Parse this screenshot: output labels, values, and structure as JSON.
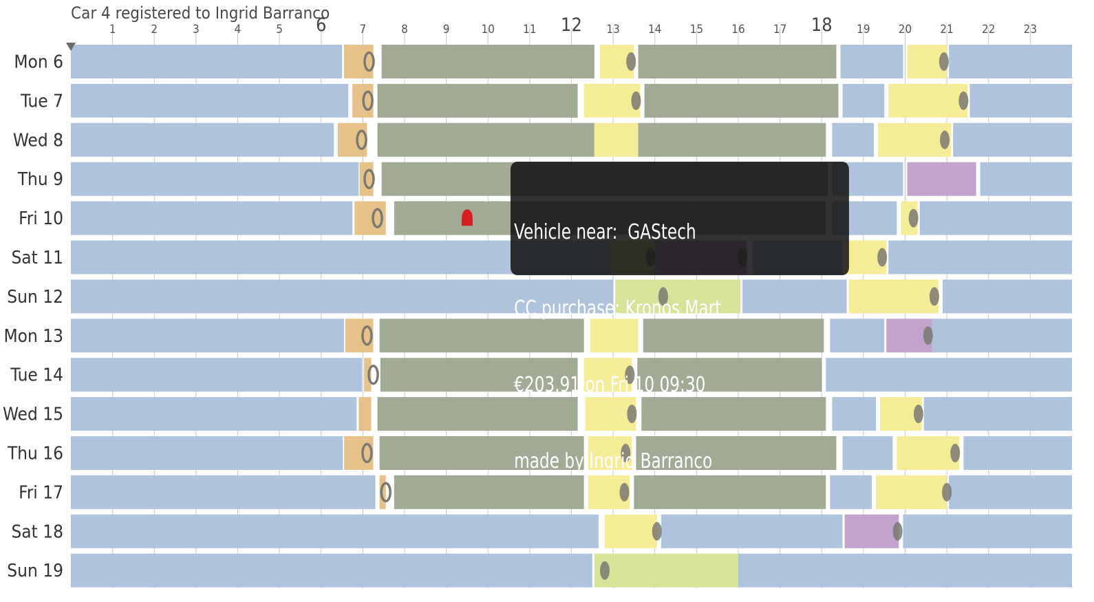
{
  "chart_data": {
    "type": "timeline",
    "title": "Car 4 registered to Ingrid Barranco",
    "x_ticks": [
      "1",
      "2",
      "3",
      "4",
      "5",
      "6",
      "7",
      "8",
      "9",
      "10",
      "11",
      "12",
      "13",
      "14",
      "15",
      "16",
      "17",
      "18",
      "19",
      "20",
      "21",
      "22",
      "23"
    ],
    "major_ticks": [
      "6",
      "12",
      "18"
    ],
    "x_range": [
      0,
      24
    ],
    "categories": [
      "Mon 6",
      "Tue 7",
      "Wed 8",
      "Thu 9",
      "Fri 10",
      "Sat 11",
      "Sun 12",
      "Mon 13",
      "Tue 14",
      "Wed 15",
      "Thu 16",
      "Fri 17",
      "Sat 18",
      "Sun 19"
    ],
    "colors": {
      "home": "#b0c3dc",
      "commute": "#e6c28a",
      "work": "#a0aa94",
      "lunch": "#f5ec98",
      "leisure": "#d6e49a",
      "evening": "#c1a3cd",
      "car_location": "#7a7a72",
      "purchase": "#d42020",
      "grid": "#c8c8c8"
    },
    "series": [
      {
        "day": "Mon 6",
        "segments": [
          [
            0,
            6.5,
            "home"
          ],
          [
            6.55,
            7.25,
            "commute"
          ],
          [
            7.45,
            12.55,
            "work"
          ],
          [
            12.68,
            13.5,
            "lunch"
          ],
          [
            13.6,
            18.35,
            "work"
          ],
          [
            18.45,
            19.95,
            "home"
          ],
          [
            20.05,
            21.0,
            "lunch"
          ],
          [
            21.05,
            24,
            "home"
          ]
        ],
        "stops": [
          [
            7.15,
            "ring"
          ],
          [
            13.43,
            "dot"
          ],
          [
            20.93,
            "dot"
          ]
        ]
      },
      {
        "day": "Tue 7",
        "segments": [
          [
            0,
            6.65,
            "home"
          ],
          [
            6.75,
            7.25,
            "commute"
          ],
          [
            7.35,
            12.15,
            "work"
          ],
          [
            12.3,
            13.65,
            "lunch"
          ],
          [
            13.75,
            18.4,
            "work"
          ],
          [
            18.5,
            19.5,
            "home"
          ],
          [
            19.6,
            21.5,
            "lunch"
          ],
          [
            21.55,
            24,
            "home"
          ]
        ],
        "stops": [
          [
            7.12,
            "ring"
          ],
          [
            13.55,
            "dot"
          ],
          [
            21.4,
            "dot"
          ]
        ]
      },
      {
        "day": "Wed 8",
        "segments": [
          [
            0,
            6.3,
            "home"
          ],
          [
            6.4,
            7.1,
            "commute"
          ],
          [
            7.35,
            12.55,
            "work"
          ],
          [
            12.55,
            13.6,
            "lunch"
          ],
          [
            13.6,
            18.1,
            "work"
          ],
          [
            18.25,
            19.25,
            "home"
          ],
          [
            19.35,
            21.1,
            "lunch"
          ],
          [
            21.15,
            24,
            "home"
          ]
        ],
        "stops": [
          [
            6.97,
            "ring"
          ],
          [
            20.95,
            "dot"
          ]
        ]
      },
      {
        "day": "Thu 9",
        "segments": [
          [
            0,
            6.9,
            "home"
          ],
          [
            6.92,
            7.25,
            "commute"
          ],
          [
            7.45,
            18.15,
            "work"
          ],
          [
            18.25,
            19.95,
            "home"
          ],
          [
            20.05,
            21.7,
            "evening"
          ],
          [
            21.8,
            24,
            "home"
          ]
        ],
        "stops": [
          [
            7.15,
            "ring"
          ]
        ]
      },
      {
        "day": "Fri 10",
        "segments": [
          [
            0,
            6.75,
            "home"
          ],
          [
            6.8,
            7.55,
            "commute"
          ],
          [
            7.75,
            18.1,
            "work"
          ],
          [
            18.25,
            19.8,
            "home"
          ],
          [
            19.9,
            20.3,
            "lunch"
          ],
          [
            20.35,
            24,
            "home"
          ]
        ],
        "stops": [
          [
            7.35,
            "ring"
          ],
          [
            20.2,
            "dot"
          ]
        ],
        "purchases": [
          9.5
        ]
      },
      {
        "day": "Sat 11",
        "segments": [
          [
            0,
            12.95,
            "home"
          ],
          [
            12.95,
            14.0,
            "leisure"
          ],
          [
            14.0,
            16.2,
            "evening"
          ],
          [
            16.35,
            18.5,
            "home"
          ],
          [
            18.55,
            19.55,
            "lunch"
          ],
          [
            19.6,
            24,
            "home"
          ]
        ],
        "stops": [
          [
            13.9,
            "dot"
          ],
          [
            16.1,
            "dot"
          ],
          [
            19.45,
            "dot"
          ]
        ]
      },
      {
        "day": "Sun 12",
        "segments": [
          [
            0,
            13.0,
            "home"
          ],
          [
            13.05,
            16.05,
            "leisure"
          ],
          [
            16.1,
            18.6,
            "home"
          ],
          [
            18.65,
            20.8,
            "lunch"
          ],
          [
            20.9,
            24,
            "home"
          ]
        ],
        "stops": [
          [
            14.2,
            "dot"
          ],
          [
            20.7,
            "dot"
          ]
        ]
      },
      {
        "day": "Mon 13",
        "segments": [
          [
            0,
            6.55,
            "home"
          ],
          [
            6.58,
            7.25,
            "commute"
          ],
          [
            7.4,
            12.3,
            "work"
          ],
          [
            12.45,
            13.6,
            "lunch"
          ],
          [
            13.72,
            18.05,
            "work"
          ],
          [
            18.2,
            19.5,
            "home"
          ],
          [
            19.55,
            20.65,
            "evening"
          ],
          [
            20.65,
            24,
            "home"
          ]
        ],
        "stops": [
          [
            7.1,
            "ring"
          ],
          [
            20.55,
            "dot"
          ]
        ]
      },
      {
        "day": "Tue 14",
        "segments": [
          [
            0,
            6.98,
            "home"
          ],
          [
            7.03,
            7.2,
            "commute"
          ],
          [
            7.42,
            12.15,
            "work"
          ],
          [
            12.3,
            13.45,
            "lunch"
          ],
          [
            13.58,
            18.0,
            "work"
          ],
          [
            18.1,
            24,
            "home"
          ]
        ],
        "stops": [
          [
            7.25,
            "ring"
          ],
          [
            13.4,
            "dot"
          ]
        ]
      },
      {
        "day": "Wed 15",
        "segments": [
          [
            0,
            6.85,
            "home"
          ],
          [
            6.9,
            7.2,
            "commute"
          ],
          [
            7.35,
            12.15,
            "work"
          ],
          [
            12.33,
            13.55,
            "lunch"
          ],
          [
            13.68,
            18.1,
            "work"
          ],
          [
            18.25,
            19.3,
            "home"
          ],
          [
            19.4,
            20.4,
            "lunch"
          ],
          [
            20.45,
            24,
            "home"
          ]
        ],
        "stops": [
          [
            13.45,
            "dot"
          ],
          [
            20.32,
            "dot"
          ]
        ]
      },
      {
        "day": "Thu 16",
        "segments": [
          [
            0,
            6.52,
            "home"
          ],
          [
            6.55,
            7.25,
            "commute"
          ],
          [
            7.4,
            12.3,
            "work"
          ],
          [
            12.4,
            13.45,
            "lunch"
          ],
          [
            13.55,
            18.35,
            "work"
          ],
          [
            18.5,
            19.7,
            "home"
          ],
          [
            19.8,
            21.3,
            "lunch"
          ],
          [
            21.4,
            24,
            "home"
          ]
        ],
        "stops": [
          [
            7.1,
            "ring"
          ],
          [
            13.3,
            "dot"
          ],
          [
            21.2,
            "dot"
          ]
        ]
      },
      {
        "day": "Fri 17",
        "segments": [
          [
            0,
            7.3,
            "home"
          ],
          [
            7.4,
            7.55,
            "commute"
          ],
          [
            7.75,
            12.3,
            "work"
          ],
          [
            12.4,
            13.4,
            "lunch"
          ],
          [
            13.5,
            18.1,
            "work"
          ],
          [
            18.2,
            19.2,
            "home"
          ],
          [
            19.3,
            21.0,
            "lunch"
          ],
          [
            21.05,
            24,
            "home"
          ]
        ],
        "stops": [
          [
            7.55,
            "ring"
          ],
          [
            13.27,
            "dot"
          ],
          [
            21.0,
            "dot"
          ]
        ]
      },
      {
        "day": "Sat 18",
        "segments": [
          [
            0,
            12.65,
            "home"
          ],
          [
            12.8,
            14.05,
            "lunch"
          ],
          [
            14.15,
            18.5,
            "home"
          ],
          [
            18.55,
            19.85,
            "evening"
          ],
          [
            19.95,
            24,
            "home"
          ]
        ],
        "stops": [
          [
            14.05,
            "dot"
          ],
          [
            19.82,
            "dot"
          ]
        ]
      },
      {
        "day": "Sun 19",
        "segments": [
          [
            0,
            12.5,
            "home"
          ],
          [
            12.55,
            16.0,
            "leisure"
          ],
          [
            16.0,
            24,
            "home"
          ]
        ],
        "stops": [
          [
            12.8,
            "dot"
          ]
        ]
      }
    ],
    "tooltip": {
      "lines": [
        "Vehicle near:  GAStech",
        "CC purchase: Kronos Mart",
        "€203.91 on Fri 10 09:30",
        "made by Ingrid Barranco"
      ]
    }
  }
}
